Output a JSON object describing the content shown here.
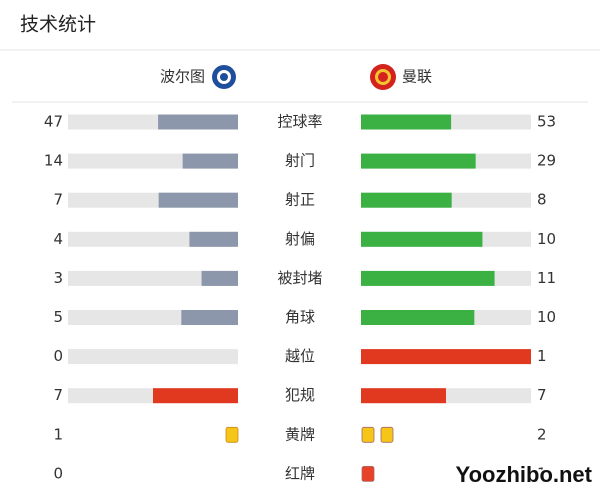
{
  "header": {
    "title": "技术统计"
  },
  "teams": {
    "home": "波尔图",
    "away": "曼联"
  },
  "rows": [
    {
      "label": "控球率",
      "home": 47,
      "away": 53,
      "kind": "bar",
      "home_color": "#8c97ab",
      "away_color": "#3bb143"
    },
    {
      "label": "射门",
      "home": 14,
      "away": 29,
      "kind": "bar",
      "home_color": "#8c97ab",
      "away_color": "#3bb143"
    },
    {
      "label": "射正",
      "home": 7,
      "away": 8,
      "kind": "bar",
      "home_color": "#8c97ab",
      "away_color": "#3bb143"
    },
    {
      "label": "射偏",
      "home": 4,
      "away": 10,
      "kind": "bar",
      "home_color": "#8c97ab",
      "away_color": "#3bb143"
    },
    {
      "label": "被封堵",
      "home": 3,
      "away": 11,
      "kind": "bar",
      "home_color": "#8c97ab",
      "away_color": "#3bb143"
    },
    {
      "label": "角球",
      "home": 5,
      "away": 10,
      "kind": "bar",
      "home_color": "#8c97ab",
      "away_color": "#3bb143"
    },
    {
      "label": "越位",
      "home": 0,
      "away": 1,
      "kind": "bar",
      "home_color": "#e0391f",
      "away_color": "#e0391f"
    },
    {
      "label": "犯规",
      "home": 7,
      "away": 7,
      "kind": "bar",
      "home_color": "#e0391f",
      "away_color": "#e0391f"
    },
    {
      "label": "黄牌",
      "home": 1,
      "away": 2,
      "kind": "cards",
      "home_color": "#f5c518",
      "away_color": "#f5c518"
    },
    {
      "label": "红牌",
      "home": 0,
      "away": 1,
      "kind": "cards",
      "home_color": "#e8412a",
      "away_color": "#e8412a"
    }
  ],
  "watermark": "Yoozhibo.net"
}
